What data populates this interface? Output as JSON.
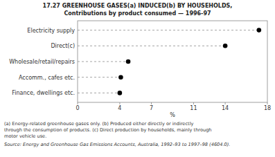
{
  "chart_data": {
    "type": "dot",
    "title": "17.27   GREENHOUSE GASES(a) INDUCED(b) BY HOUSEHOLDS,",
    "subtitle": "Contributions by product consumed — 1996-97",
    "categories": [
      "Finance, dwellings etc.",
      "Accomm., cafes etc.",
      "Wholesale/retail/repairs",
      "Direct(c)",
      "Electricity supply"
    ],
    "values": [
      4.0,
      4.1,
      4.8,
      14.0,
      17.2
    ],
    "xlabel": "%",
    "xlim": [
      0,
      18
    ],
    "xticks": [
      0,
      4,
      7,
      11,
      14,
      18
    ],
    "orientation": "horizontal",
    "color": "#000000",
    "marker": "circle",
    "line_style": "dashed",
    "grid": false,
    "annotations": [
      "(a) Energy-related greenhouse gases only.  (b) Produced either directly or indirectly",
      "through the consumption of products. (c) Direct production by households, mainly through",
      "motor vehicle use.",
      "Source:  Energy and Greenhouse Gas Emissions Accounts, Australia, 1992–93 to 1997–98 (4604.0)."
    ]
  }
}
